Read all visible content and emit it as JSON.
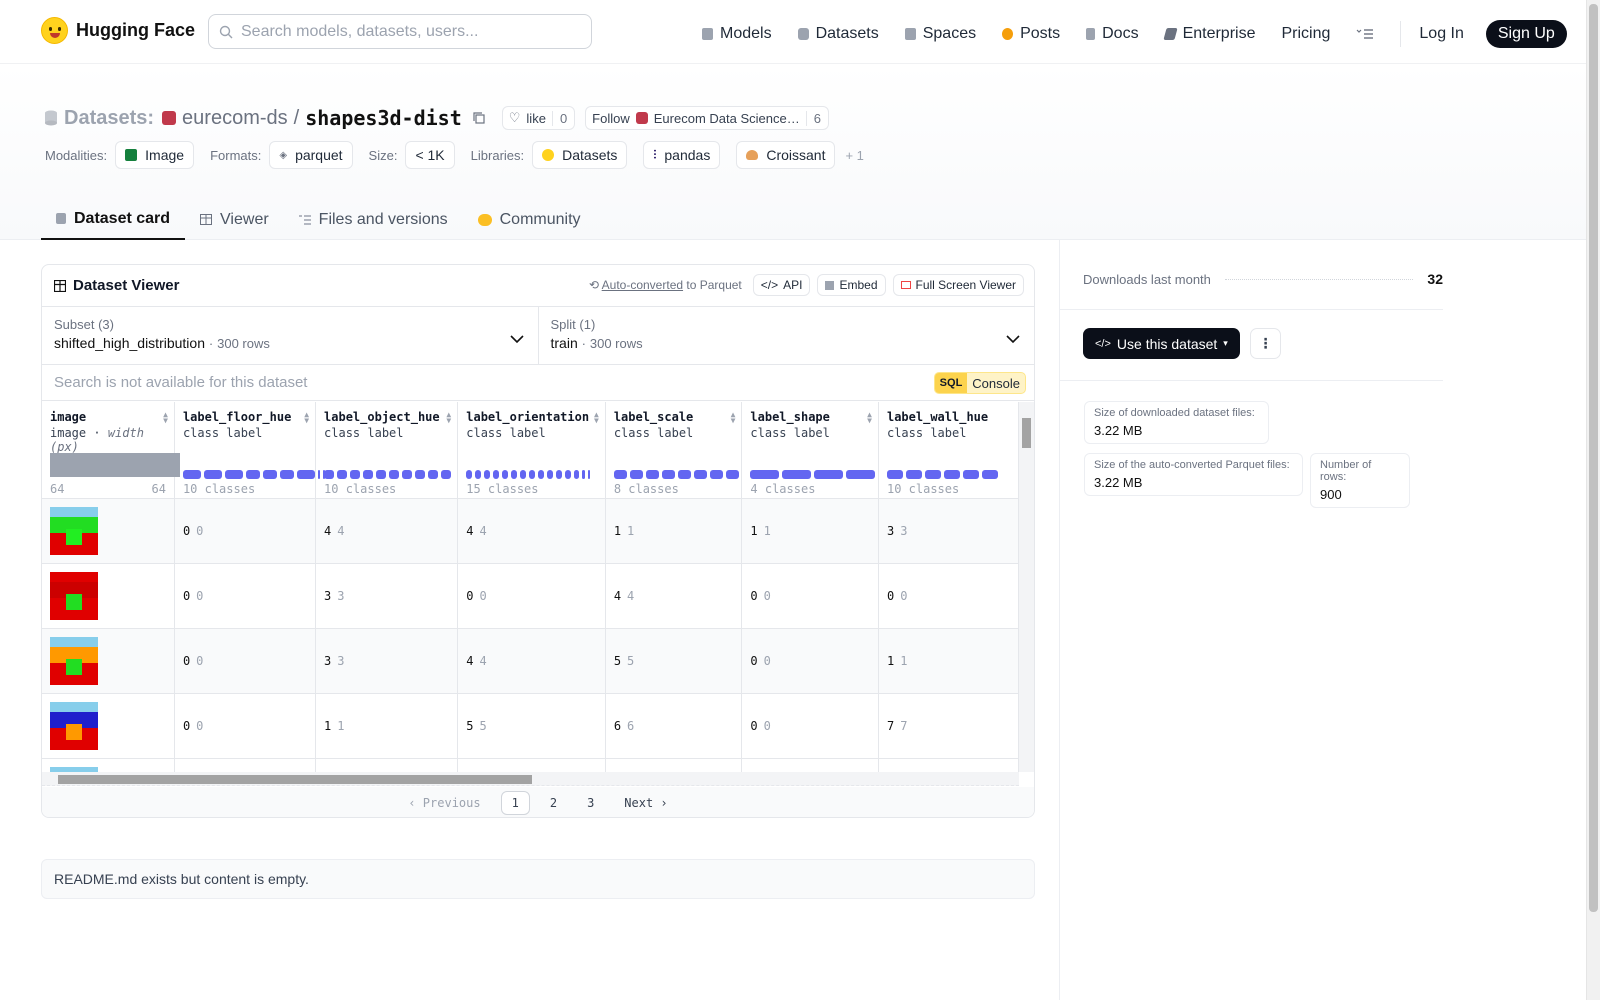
{
  "header": {
    "brand": "Hugging Face",
    "search_placeholder": "Search models, datasets, users...",
    "nav": [
      {
        "label": "Models",
        "icon": "models-icon",
        "color": "#9ca3af"
      },
      {
        "label": "Datasets",
        "icon": "datasets-icon",
        "color": "#9ca3af"
      },
      {
        "label": "Spaces",
        "icon": "spaces-icon",
        "color": "#9ca3af"
      },
      {
        "label": "Posts",
        "icon": "posts-icon",
        "color": "#f59e0b"
      },
      {
        "label": "Docs",
        "icon": "docs-icon",
        "color": "#9ca3af"
      },
      {
        "label": "Enterprise",
        "icon": "enterprise-icon",
        "color": "#6b7280"
      },
      {
        "label": "Pricing"
      }
    ],
    "login": "Log In",
    "signup": "Sign Up"
  },
  "dataset": {
    "section": "Datasets:",
    "org": "eurecom-ds",
    "name": "shapes3d-dist",
    "like_label": "like",
    "like_count": "0",
    "follow_label": "Follow",
    "follow_org": "Eurecom Data Science…",
    "follow_count": "6",
    "meta": {
      "modalities_label": "Modalities:",
      "modality": "Image",
      "formats_label": "Formats:",
      "format": "parquet",
      "size_label": "Size:",
      "size": "< 1K",
      "libraries_label": "Libraries:",
      "libraries": [
        "Datasets",
        "pandas",
        "Croissant"
      ],
      "libraries_more": "+ 1"
    },
    "tabs": [
      "Dataset card",
      "Viewer",
      "Files and versions",
      "Community"
    ]
  },
  "viewer": {
    "title": "Dataset Viewer",
    "auto_converted": "Auto-converted",
    "to_parquet": "to Parquet",
    "api": "API",
    "embed": "Embed",
    "fullscreen": "Full Screen Viewer",
    "subset_label": "Subset (3)",
    "subset_value": "shifted_high_distribution",
    "subset_rows": "300 rows",
    "split_label": "Split (1)",
    "split_value": "train",
    "split_rows": "300 rows",
    "search_placeholder": "Search is not available for this dataset",
    "sql": "SQL",
    "console": "Console",
    "columns": [
      {
        "name": "image",
        "type": "image",
        "extra": "width (px)",
        "range_min": "64",
        "range_max": "64"
      },
      {
        "name": "label_floor_hue",
        "type": "class label",
        "classes": "10 classes"
      },
      {
        "name": "label_object_hue",
        "type": "class label",
        "classes": "10 classes"
      },
      {
        "name": "label_orientation",
        "type": "class label",
        "classes": "15 classes"
      },
      {
        "name": "label_scale",
        "type": "class label",
        "classes": "8 classes"
      },
      {
        "name": "label_shape",
        "type": "class label",
        "classes": "4 classes"
      },
      {
        "name": "label_wall_hue",
        "type": "class label",
        "classes": "10 classes"
      }
    ],
    "rows": [
      {
        "img": {
          "sky": "#87ceeb",
          "wall": "#22dd22",
          "floor": "#e00000",
          "obj": "#22ee22"
        },
        "vals": [
          "0",
          "4",
          "4",
          "1",
          "1",
          "3"
        ]
      },
      {
        "img": {
          "sky": "#e00000",
          "wall": "#cc0000",
          "floor": "#e00000",
          "obj": "#22dd22"
        },
        "vals": [
          "0",
          "3",
          "0",
          "4",
          "0",
          "0"
        ]
      },
      {
        "img": {
          "sky": "#87ceeb",
          "wall": "#ff9900",
          "floor": "#e00000",
          "obj": "#22dd22"
        },
        "vals": [
          "0",
          "3",
          "4",
          "5",
          "0",
          "1"
        ]
      },
      {
        "img": {
          "sky": "#87ceeb",
          "wall": "#1f1fcc",
          "floor": "#e00000",
          "obj": "#ff9900"
        },
        "vals": [
          "0",
          "1",
          "5",
          "6",
          "0",
          "7"
        ]
      }
    ],
    "pager": {
      "prev": "Previous",
      "pages": [
        "1",
        "2",
        "3"
      ],
      "current": "1",
      "next": "Next"
    }
  },
  "readme": "README.md exists but content is empty.",
  "sidebar": {
    "downloads_label": "Downloads last month",
    "downloads": "32",
    "use_dataset": "Use this dataset",
    "dl_size_label": "Size of downloaded dataset files:",
    "dl_size": "3.22 MB",
    "parquet_size_label": "Size of the auto-converted Parquet files:",
    "parquet_size": "3.22 MB",
    "rows_label": "Number of rows:",
    "rows": "900"
  }
}
